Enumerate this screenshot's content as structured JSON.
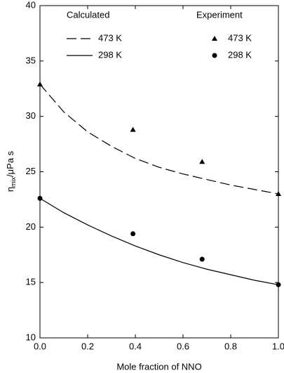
{
  "chart_data": {
    "type": "line",
    "xlabel": "Mole fraction of NNO",
    "ylabel": [
      "η",
      "mix",
      "/μPa s"
    ],
    "xlim": [
      0,
      1
    ],
    "ylim": [
      10,
      40
    ],
    "xticks": [
      {
        "value": 0,
        "label": "0.0"
      },
      {
        "value": 0.2,
        "label": "0.2"
      },
      {
        "value": 0.4,
        "label": "0.4"
      },
      {
        "value": 0.6,
        "label": "0.6"
      },
      {
        "value": 0.8,
        "label": "0.8"
      },
      {
        "value": 1,
        "label": "1.0"
      }
    ],
    "yticks": [
      10,
      15,
      20,
      25,
      30,
      35,
      40
    ],
    "legend_titles": [
      "Calculated",
      "Experiment"
    ],
    "series": [
      {
        "name": "473 K",
        "group": 0,
        "style": "dashed",
        "color": "#000",
        "x": [
          0,
          0.1,
          0.2,
          0.3,
          0.4,
          0.5,
          0.6,
          0.7,
          0.8,
          0.9,
          1
        ],
        "values": [
          32.9,
          30.4,
          28.6,
          27.3,
          26.2,
          25.4,
          24.8,
          24.3,
          23.8,
          23.4,
          23.0
        ]
      },
      {
        "name": "298 K",
        "group": 0,
        "style": "solid",
        "color": "#000",
        "x": [
          0,
          0.1,
          0.2,
          0.3,
          0.4,
          0.5,
          0.6,
          0.7,
          0.8,
          0.9,
          1
        ],
        "values": [
          22.6,
          21.3,
          20.2,
          19.2,
          18.3,
          17.5,
          16.8,
          16.2,
          15.7,
          15.2,
          14.8
        ]
      },
      {
        "name": "473 K",
        "group": 1,
        "style": "triangle",
        "color": "#000",
        "x": [
          0,
          0.39,
          0.68,
          1
        ],
        "values": [
          32.9,
          28.8,
          25.9,
          23.0
        ]
      },
      {
        "name": "298 K",
        "group": 1,
        "style": "circle",
        "color": "#000",
        "x": [
          0,
          0.39,
          0.68,
          1
        ],
        "values": [
          22.6,
          19.4,
          17.1,
          14.8
        ]
      }
    ]
  }
}
